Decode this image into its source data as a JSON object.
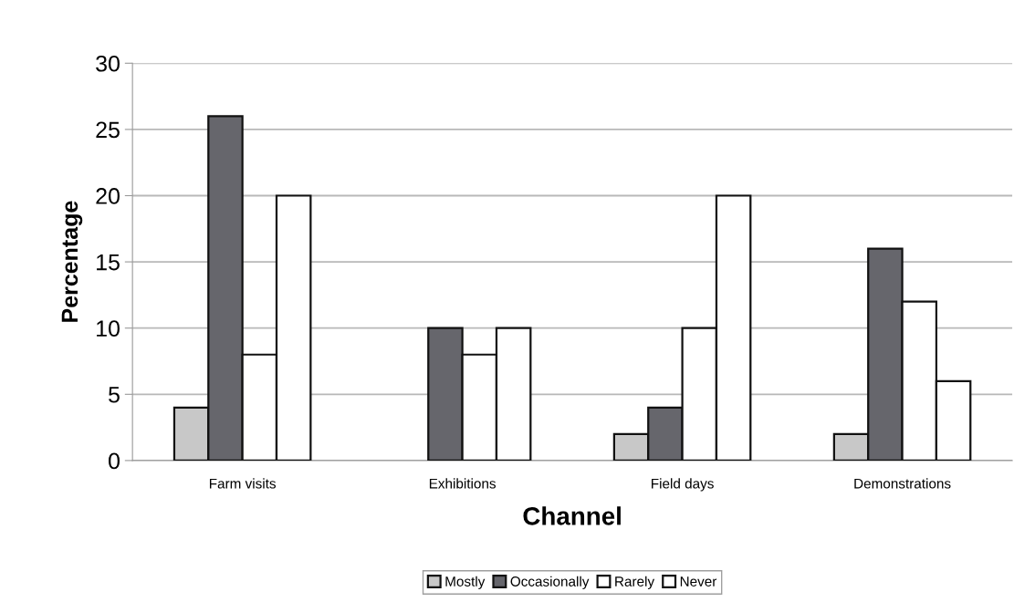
{
  "chart_data": {
    "type": "bar",
    "xlabel": "Channel",
    "ylabel": "Percentage",
    "categories": [
      "Farm visits",
      "Exhibitions",
      "Field days",
      "Demonstrations"
    ],
    "series": [
      {
        "name": "Mostly",
        "color": "#c8c8c8",
        "values": [
          4,
          null,
          2,
          2
        ]
      },
      {
        "name": "Occasionally",
        "color": "#66666c",
        "values": [
          26,
          10,
          4,
          16
        ]
      },
      {
        "name": "Rarely",
        "color": "#ffffff",
        "values": [
          8,
          8,
          10,
          12
        ]
      },
      {
        "name": "Never",
        "color": "#ffffff",
        "values": [
          20,
          10,
          20,
          6
        ]
      }
    ],
    "ylim": [
      0,
      30
    ],
    "yticks": [
      0,
      5,
      10,
      15,
      20,
      25,
      30
    ],
    "grid": "y",
    "legend": "bottom"
  }
}
